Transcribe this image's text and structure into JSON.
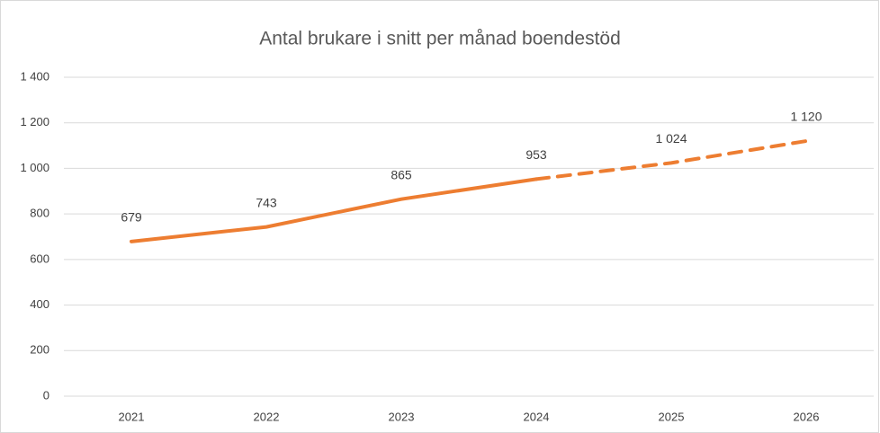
{
  "chart_data": {
    "type": "line",
    "title": "Antal brukare i snitt per månad boendestöd",
    "categories": [
      "2021",
      "2022",
      "2023",
      "2024",
      "2025",
      "2026"
    ],
    "series": [
      {
        "color": "#ed7d31",
        "values": [
          679,
          743,
          865,
          953,
          1024,
          1120
        ],
        "value_labels": [
          "679",
          "743",
          "865",
          "953",
          "1 024",
          "1 120"
        ],
        "dashed_from": 3
      }
    ],
    "ylim": [
      0,
      1400
    ],
    "yticks": [
      0,
      200,
      400,
      600,
      800,
      {
        "value": 1000,
        "label": "1 000"
      },
      {
        "value": 1200,
        "label": "1 200"
      },
      {
        "value": 1400,
        "label": "1 400"
      }
    ],
    "grid": true
  }
}
